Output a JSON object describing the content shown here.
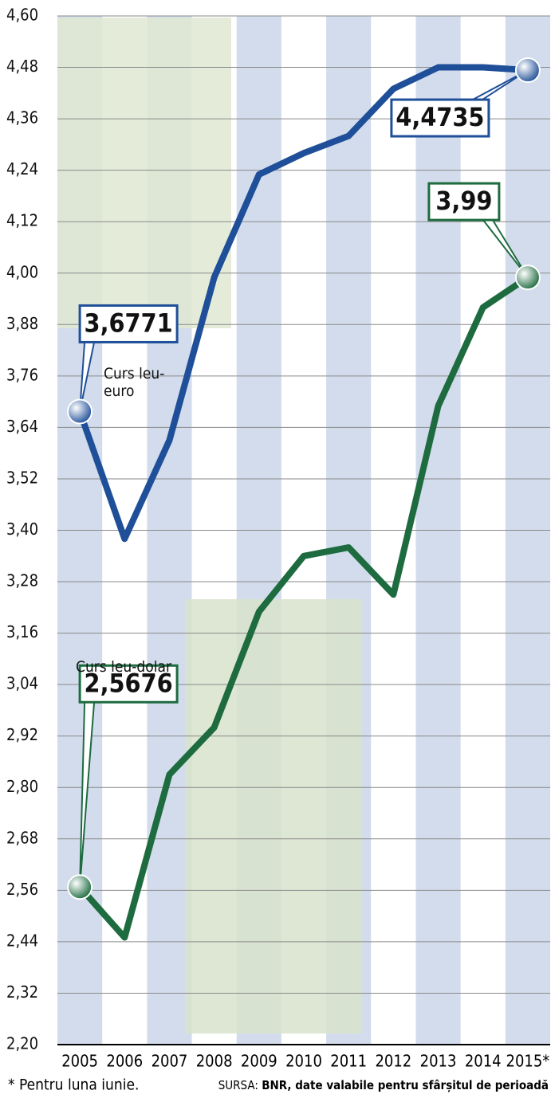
{
  "chart_data": {
    "type": "line",
    "categories": [
      "2005",
      "2006",
      "2007",
      "2008",
      "2009",
      "2010",
      "2011",
      "2012",
      "2013",
      "2014",
      "2015*"
    ],
    "series": [
      {
        "name": "Curs leu-euro",
        "color": "#1f4f98",
        "values": [
          3.6771,
          3.38,
          3.61,
          3.99,
          4.23,
          4.28,
          4.32,
          4.43,
          4.48,
          4.48,
          4.4735
        ],
        "value_labels": [
          "3,6771",
          null,
          null,
          null,
          null,
          null,
          null,
          null,
          null,
          null,
          "4,4735"
        ]
      },
      {
        "name": "Curs leu-dolar",
        "color": "#1d6b3f",
        "values": [
          2.5676,
          2.45,
          2.83,
          2.94,
          3.21,
          3.34,
          3.36,
          3.25,
          3.69,
          3.92,
          3.99
        ],
        "value_labels": [
          "2,5676",
          null,
          null,
          null,
          null,
          null,
          null,
          null,
          null,
          null,
          "3,99"
        ]
      }
    ],
    "ylim": [
      2.2,
      4.6
    ],
    "yticks": [
      {
        "value": 2.2,
        "label": "2,20"
      },
      {
        "value": 2.32,
        "label": "2,32"
      },
      {
        "value": 2.44,
        "label": "2,44"
      },
      {
        "value": 2.56,
        "label": "2,56"
      },
      {
        "value": 2.68,
        "label": "2,68"
      },
      {
        "value": 2.8,
        "label": "2,80"
      },
      {
        "value": 2.92,
        "label": "2,92"
      },
      {
        "value": 3.04,
        "label": "3,04"
      },
      {
        "value": 3.16,
        "label": "3,16"
      },
      {
        "value": 3.28,
        "label": "3,28"
      },
      {
        "value": 3.4,
        "label": "3,40"
      },
      {
        "value": 3.52,
        "label": "3,52"
      },
      {
        "value": 3.64,
        "label": "3,64"
      },
      {
        "value": 3.76,
        "label": "3,76"
      },
      {
        "value": 3.88,
        "label": "3,88"
      },
      {
        "value": 4.0,
        "label": "4,00"
      },
      {
        "value": 4.12,
        "label": "4,12"
      },
      {
        "value": 4.24,
        "label": "4,24"
      },
      {
        "value": 4.36,
        "label": "4,36"
      },
      {
        "value": 4.48,
        "label": "4,48"
      },
      {
        "value": 4.6,
        "label": "4,60"
      }
    ],
    "grid": true,
    "footnote": "* Pentru luna iunie.",
    "source_label": "SURSA:",
    "source_text": "BNR, date valabile pentru sfârșitul de perioadă"
  }
}
